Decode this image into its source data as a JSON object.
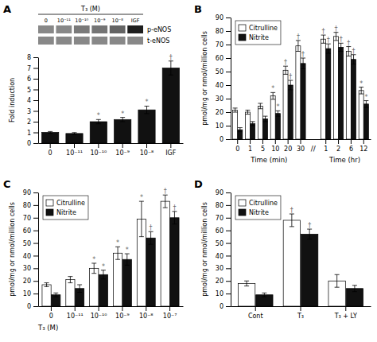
{
  "chart_data": [
    {
      "type": "heatmap",
      "xlabel": "T₃ (M)",
      "categories": [
        "0",
        "10⁻¹¹",
        "10⁻¹⁰",
        "10⁻⁹",
        "10⁻⁸",
        "IGF"
      ],
      "series": [
        {
          "name": "p-eNOS",
          "values": [
            0.55,
            0.55,
            0.6,
            0.62,
            0.68,
            0.9
          ]
        },
        {
          "name": "t-eNOS",
          "values": [
            0.55,
            0.55,
            0.55,
            0.55,
            0.55,
            0.55
          ]
        }
      ]
    },
    {
      "type": "bar",
      "title": "A",
      "categories": [
        "0",
        "10⁻¹¹",
        "10⁻¹⁰",
        "10⁻⁹",
        "10⁻⁸",
        "IGF"
      ],
      "values": [
        1.0,
        0.9,
        2.0,
        2.2,
        3.1,
        7.0
      ],
      "errors": [
        0.08,
        0.08,
        0.2,
        0.2,
        0.35,
        0.65
      ],
      "annotations": [
        null,
        null,
        "*",
        "*",
        "*",
        "†"
      ],
      "color": "#111111",
      "ylabel": "Fold induction",
      "ylim": [
        0,
        8
      ],
      "yticks": [
        0,
        1,
        2,
        3,
        4,
        5,
        6,
        7,
        8
      ]
    },
    {
      "type": "bar",
      "title": "B",
      "categories": [
        "0",
        "1",
        "5",
        "10",
        "20",
        "30",
        null,
        "1",
        "2",
        "6",
        "12"
      ],
      "group_labels": [
        "Time (min)",
        "Time (hr)"
      ],
      "break_label": "//",
      "series": [
        {
          "name": "Citrulline",
          "color": "#ffffff",
          "values": [
            21.5,
            20.0,
            24.5,
            32.0,
            51.0,
            69.0,
            null,
            74.0,
            76.0,
            65.0,
            36.0
          ],
          "errors": [
            1.5,
            1.5,
            2.0,
            2.5,
            3.0,
            4.0,
            null,
            3.0,
            3.0,
            3.5,
            2.5
          ],
          "annotations": [
            null,
            null,
            null,
            "*",
            "†",
            "†",
            null,
            "†",
            "†",
            "†",
            "*"
          ]
        },
        {
          "name": "Nitrite",
          "color": "#111111",
          "values": [
            7.0,
            11.5,
            15.0,
            19.0,
            40.0,
            56.0,
            null,
            67.0,
            68.0,
            59.0,
            26.0
          ],
          "errors": [
            1.5,
            1.5,
            2.0,
            2.0,
            3.5,
            4.0,
            null,
            3.5,
            3.0,
            3.5,
            2.5
          ],
          "annotations": [
            null,
            null,
            null,
            "*",
            "†",
            "†",
            null,
            "†",
            "†",
            "†",
            "*"
          ]
        }
      ],
      "legend": "upper left",
      "ylabel": "pmol/mg or nmol/million cells",
      "ylim": [
        0,
        90
      ],
      "yticks": [
        0,
        10,
        20,
        30,
        40,
        50,
        60,
        70,
        80,
        90
      ]
    },
    {
      "type": "bar",
      "title": "C",
      "categories": [
        "0",
        "10⁻¹¹",
        "10⁻¹⁰",
        "10⁻⁹",
        "10⁻⁸",
        "10⁻⁷"
      ],
      "xlabel": "T₃ (M)",
      "series": [
        {
          "name": "Citrulline",
          "color": "#ffffff",
          "values": [
            17.0,
            21.0,
            30.0,
            42.0,
            69.0,
            83.0
          ],
          "errors": [
            1.5,
            2.5,
            4.0,
            5.0,
            14.0,
            5.0
          ],
          "annotations": [
            null,
            null,
            "*",
            "*",
            "*",
            "†"
          ]
        },
        {
          "name": "Nitrite",
          "color": "#111111",
          "values": [
            9.0,
            14.0,
            25.0,
            37.0,
            54.0,
            70.0
          ],
          "errors": [
            1.5,
            3.0,
            3.5,
            4.5,
            5.0,
            5.0
          ],
          "annotations": [
            null,
            null,
            "*",
            "*",
            "†",
            "†"
          ]
        }
      ],
      "legend": "upper left",
      "ylabel": "pmol/mg or nmol/million cells",
      "ylim": [
        0,
        90
      ],
      "yticks": [
        0,
        10,
        20,
        30,
        40,
        50,
        60,
        70,
        80,
        90
      ]
    },
    {
      "type": "bar",
      "title": "D",
      "categories": [
        "Cont",
        "T₃",
        "T₃ + LY"
      ],
      "series": [
        {
          "name": "Citrulline",
          "color": "#ffffff",
          "values": [
            18.0,
            68.0,
            20.0
          ],
          "errors": [
            2.0,
            5.0,
            5.0
          ],
          "annotations": [
            null,
            "†",
            null
          ]
        },
        {
          "name": "Nitrite",
          "color": "#111111",
          "values": [
            9.0,
            57.0,
            14.0
          ],
          "errors": [
            1.5,
            4.0,
            2.5
          ],
          "annotations": [
            null,
            "†",
            null
          ]
        }
      ],
      "legend": "upper left",
      "ylabel": "pmol/mg or nmol/million cells",
      "ylim": [
        0,
        90
      ],
      "yticks": [
        0,
        10,
        20,
        30,
        40,
        50,
        60,
        70,
        80,
        90
      ]
    }
  ]
}
